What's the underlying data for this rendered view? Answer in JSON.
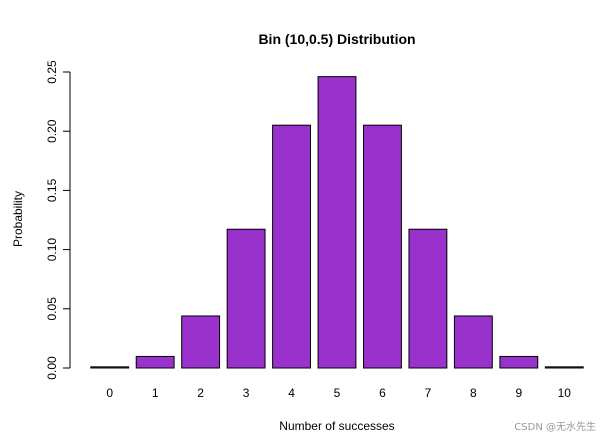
{
  "chart_data": {
    "type": "bar",
    "title": "Bin (10,0.5) Distribution",
    "xlabel": "Number of successes",
    "ylabel": "Probability",
    "categories": [
      "0",
      "1",
      "2",
      "3",
      "4",
      "5",
      "6",
      "7",
      "8",
      "9",
      "10"
    ],
    "values": [
      0.00098,
      0.00977,
      0.04395,
      0.11719,
      0.20508,
      0.24609,
      0.20508,
      0.11719,
      0.04395,
      0.00977,
      0.00098
    ],
    "ylim": [
      0,
      0.25
    ],
    "yticks": [
      "0.00",
      "0.05",
      "0.10",
      "0.15",
      "0.20",
      "0.25"
    ],
    "bar_color": "#9932cc",
    "grid": false,
    "legend": "none"
  },
  "watermark": "CSDN @无水先生"
}
